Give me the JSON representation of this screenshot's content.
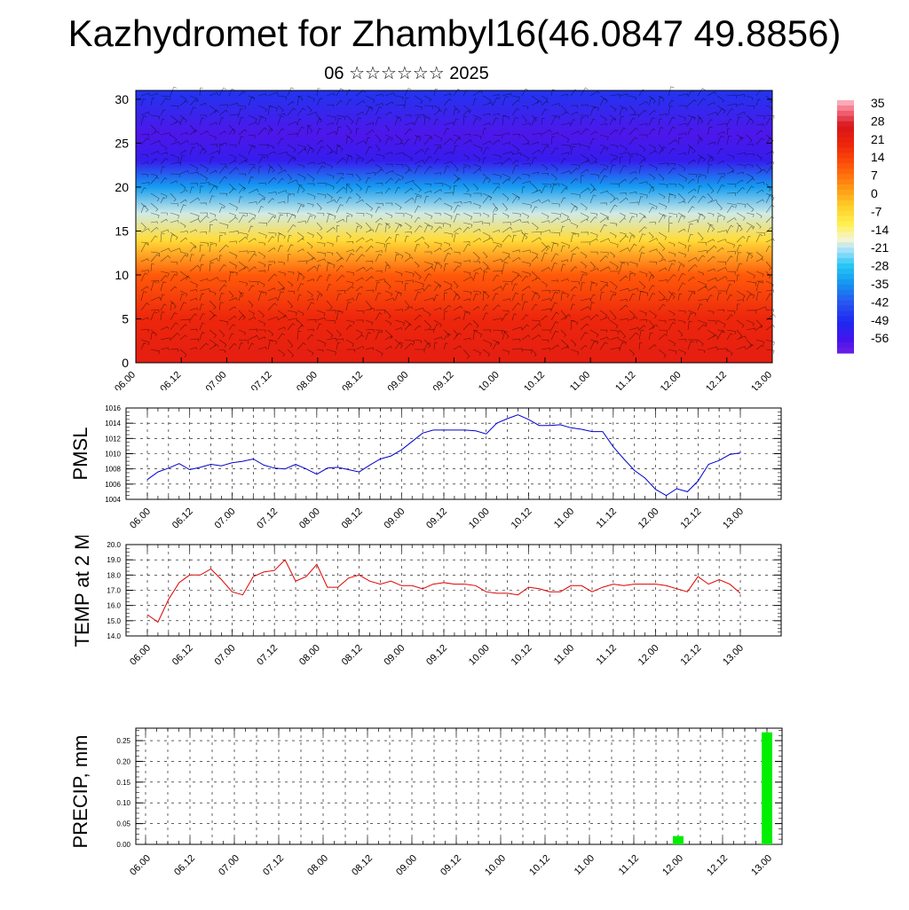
{
  "header": {
    "title": "Kazhydromet for Zhambyl16(46.0847 49.8856)",
    "subtitle": "06 ☆☆☆☆☆☆ 2025"
  },
  "colors": {
    "pmsl_line": "#0000cc",
    "temp_line": "#dd0000",
    "precip_bar": "#00ee00",
    "grid": "#000000"
  },
  "chart_data": [
    {
      "type": "heatmap",
      "title": "",
      "xlabel": "",
      "ylabel": "",
      "x_ticks": [
        "06.00",
        "06.12",
        "07.00",
        "07.12",
        "08.00",
        "08.12",
        "09.00",
        "09.12",
        "10.00",
        "10.12",
        "11.00",
        "11.12",
        "12.00",
        "12.12",
        "13.00"
      ],
      "y_ticks": [
        "0",
        "5",
        "10",
        "15",
        "20",
        "25",
        "30"
      ],
      "ylim": [
        0,
        31
      ],
      "colorbar": {
        "labels": [
          "35",
          "28",
          "21",
          "14",
          "7",
          "0",
          "-7",
          "-14",
          "-21",
          "-28",
          "-35",
          "-42",
          "-49",
          "-56"
        ],
        "range": [
          -60,
          38
        ]
      },
      "vertical_profile": [
        {
          "level": 0,
          "value": 24
        },
        {
          "level": 5,
          "value": 21
        },
        {
          "level": 10,
          "value": 12
        },
        {
          "level": 14,
          "value": -6
        },
        {
          "level": 17,
          "value": -18
        },
        {
          "level": 20,
          "value": -32
        },
        {
          "level": 23,
          "value": -52
        },
        {
          "level": 26,
          "value": -56
        },
        {
          "level": 31,
          "value": -46
        }
      ],
      "overlay": "wind barbs"
    },
    {
      "type": "line",
      "title": "",
      "xlabel": "",
      "ylabel": "PMSL",
      "ylim": [
        1004,
        1016
      ],
      "y_ticks": [
        "1004",
        "1006",
        "1008",
        "1010",
        "1012",
        "1014",
        "1016"
      ],
      "x_ticks": [
        "06.00",
        "06.12",
        "07.00",
        "07.12",
        "08.00",
        "08.12",
        "09.00",
        "09.12",
        "10.00",
        "10.12",
        "11.00",
        "11.12",
        "12.00",
        "12.12",
        "13.00"
      ],
      "series": [
        {
          "x": [
            0,
            3,
            6,
            9,
            12,
            15,
            18,
            21,
            24,
            27,
            30,
            33,
            36,
            39,
            42,
            45,
            48,
            51,
            54,
            57,
            60,
            63,
            66,
            69,
            72,
            75,
            78,
            81,
            84,
            87,
            90,
            93,
            96,
            99,
            102,
            105,
            108,
            111,
            114,
            117,
            120,
            123,
            126,
            129,
            132,
            135,
            138,
            141,
            144,
            147,
            150,
            153,
            156,
            159,
            162,
            165,
            168
          ],
          "values": [
            1006.6,
            1007.6,
            1008.1,
            1008.7,
            1007.9,
            1008.2,
            1008.6,
            1008.4,
            1008.8,
            1009.0,
            1009.3,
            1008.5,
            1008.1,
            1008.0,
            1008.6,
            1008.0,
            1007.3,
            1008.1,
            1008.2,
            1007.9,
            1007.6,
            1008.5,
            1009.3,
            1009.7,
            1010.5,
            1011.6,
            1012.7,
            1013.1,
            1013.1,
            1013.1,
            1013.1,
            1013.0,
            1012.6,
            1014.0,
            1014.6,
            1015.1,
            1014.5,
            1013.7,
            1013.7,
            1013.8,
            1013.4,
            1013.2,
            1012.9,
            1012.9,
            1010.9,
            1009.3,
            1007.8,
            1006.8,
            1005.3,
            1004.5,
            1005.4,
            1005.0,
            1006.4,
            1008.6,
            1009.1,
            1009.9,
            1010.1
          ]
        }
      ]
    },
    {
      "type": "line",
      "title": "",
      "xlabel": "",
      "ylabel": "TEMP at 2 M",
      "ylim": [
        14,
        20
      ],
      "y_ticks": [
        "14.0",
        "15.0",
        "16.0",
        "17.0",
        "18.0",
        "19.0",
        "20.0"
      ],
      "x_ticks": [
        "06.00",
        "06.12",
        "07.00",
        "07.12",
        "08.00",
        "08.12",
        "09.00",
        "09.12",
        "10.00",
        "10.12",
        "11.00",
        "11.12",
        "12.00",
        "12.12",
        "13.00"
      ],
      "series": [
        {
          "x": [
            0,
            3,
            6,
            9,
            12,
            15,
            18,
            21,
            24,
            27,
            30,
            33,
            36,
            39,
            42,
            45,
            48,
            51,
            54,
            57,
            60,
            63,
            66,
            69,
            72,
            75,
            78,
            81,
            84,
            87,
            90,
            93,
            96,
            99,
            102,
            105,
            108,
            111,
            114,
            117,
            120,
            123,
            126,
            129,
            132,
            135,
            138,
            141,
            144,
            147,
            150,
            153,
            156,
            159,
            162,
            165,
            168
          ],
          "values": [
            15.4,
            14.9,
            16.4,
            17.5,
            18.0,
            18.0,
            18.4,
            17.7,
            16.9,
            16.7,
            17.9,
            18.2,
            18.3,
            19.0,
            17.6,
            17.9,
            18.7,
            17.2,
            17.2,
            17.8,
            18.0,
            17.6,
            17.4,
            17.6,
            17.3,
            17.3,
            17.1,
            17.4,
            17.5,
            17.4,
            17.4,
            17.3,
            16.9,
            16.8,
            16.8,
            16.7,
            17.2,
            17.1,
            16.9,
            16.9,
            17.3,
            17.3,
            16.9,
            17.2,
            17.4,
            17.3,
            17.4,
            17.4,
            17.4,
            17.3,
            17.1,
            16.9,
            17.9,
            17.4,
            17.7,
            17.4,
            16.8
          ]
        }
      ]
    },
    {
      "type": "bar",
      "title": "",
      "xlabel": "",
      "ylabel": "PRECIP, mm",
      "ylim": [
        0,
        0.28
      ],
      "y_ticks": [
        "0.00",
        "0.05",
        "0.10",
        "0.15",
        "0.20",
        "0.25"
      ],
      "x_ticks": [
        "06.00",
        "06.12",
        "07.00",
        "07.12",
        "08.00",
        "08.12",
        "09.00",
        "09.12",
        "10.00",
        "10.12",
        "11.00",
        "11.12",
        "12.00",
        "12.12",
        "13.00"
      ],
      "series": [
        {
          "x": [
            144,
            168
          ],
          "values": [
            0.02,
            0.27
          ]
        }
      ]
    }
  ]
}
